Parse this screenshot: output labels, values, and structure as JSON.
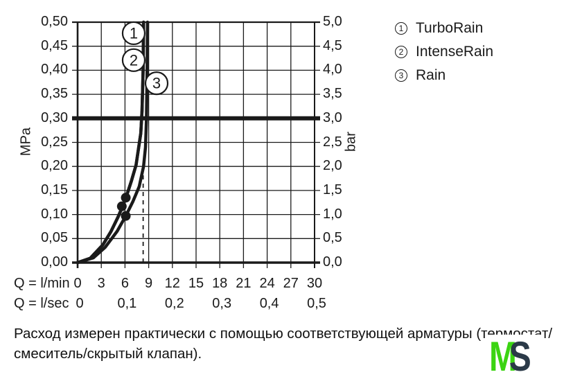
{
  "legend": {
    "items": [
      {
        "number": "1",
        "label": "TurboRain"
      },
      {
        "number": "2",
        "label": "IntenseRain"
      },
      {
        "number": "3",
        "label": "Rain"
      }
    ]
  },
  "footnote": {
    "line1": "Расход измерен практически с помощью соответствующей арматуры (термостат/",
    "line2": "смеситель/скрытый клапан)."
  },
  "logo": {
    "letter_m": "M",
    "letter_s": "S",
    "color_m": "#3bd412",
    "color_s": "#2b3a48"
  },
  "chart_data": {
    "type": "line",
    "title": "",
    "grid": true,
    "x_axis": {
      "caption_primary": "Q = l/min",
      "ticks_primary": [
        0,
        3,
        6,
        9,
        12,
        15,
        18,
        21,
        24,
        27,
        30
      ],
      "caption_secondary": "Q = l/sec",
      "ticks_secondary": [
        {
          "q": 0,
          "label": "0"
        },
        {
          "q": 6,
          "label": "0,1"
        },
        {
          "q": 12,
          "label": "0,2"
        },
        {
          "q": 18,
          "label": "0,3"
        },
        {
          "q": 24,
          "label": "0,4"
        },
        {
          "q": 30,
          "label": "0,5"
        }
      ],
      "range": [
        0,
        30
      ]
    },
    "y_axis_left": {
      "caption": "MPa",
      "ticks_top_to_bottom": [
        "0,50",
        "0,45",
        "0,40",
        "0,35",
        "0,30",
        "0,25",
        "0,20",
        "0,15",
        "0,10",
        "0,05",
        "0,00"
      ],
      "range": [
        0,
        0.5
      ]
    },
    "y_axis_right": {
      "caption": "bar",
      "ticks_top_to_bottom": [
        "5,0",
        "4,5",
        "4,0",
        "3,5",
        "3,0",
        "2,5",
        "2,0",
        "1,5",
        "1,0",
        "0,5",
        "0,0"
      ],
      "range": [
        0,
        5
      ]
    },
    "reference_line_mpa": 0.3,
    "dashed_line_lmin": 8.3,
    "series": [
      {
        "id": "1",
        "name": "TurboRain",
        "marker_q_p": [
          6.1,
          0.135
        ],
        "points_q_p": [
          [
            0,
            0
          ],
          [
            1.6,
            0.009
          ],
          [
            3.2,
            0.037
          ],
          [
            4.2,
            0.064
          ],
          [
            5.1,
            0.094
          ],
          [
            5.7,
            0.117
          ],
          [
            6.2,
            0.139
          ],
          [
            6.8,
            0.169
          ],
          [
            7.4,
            0.203
          ],
          [
            7.7,
            0.236
          ],
          [
            8.0,
            0.269
          ],
          [
            8.16,
            0.316
          ],
          [
            8.3,
            0.402
          ],
          [
            8.35,
            0.5
          ]
        ]
      },
      {
        "id": "2",
        "name": "IntenseRain",
        "marker_q_p": [
          5.6,
          0.117
        ],
        "points_q_p": [
          [
            0,
            0
          ],
          [
            1.6,
            0.009
          ],
          [
            3.2,
            0.037
          ],
          [
            4.2,
            0.064
          ],
          [
            5.1,
            0.094
          ],
          [
            5.7,
            0.117
          ],
          [
            6.2,
            0.139
          ],
          [
            6.8,
            0.169
          ],
          [
            7.4,
            0.203
          ],
          [
            7.7,
            0.236
          ],
          [
            8.0,
            0.269
          ],
          [
            8.16,
            0.316
          ],
          [
            8.3,
            0.402
          ],
          [
            8.35,
            0.5
          ]
        ]
      },
      {
        "id": "3",
        "name": "Rain",
        "marker_q_p": [
          6.1,
          0.097
        ],
        "points_q_p": [
          [
            0,
            0
          ],
          [
            2,
            0.01
          ],
          [
            3.5,
            0.032
          ],
          [
            5,
            0.065
          ],
          [
            6.1,
            0.097
          ],
          [
            7,
            0.127
          ],
          [
            7.8,
            0.158
          ],
          [
            8.35,
            0.2
          ],
          [
            8.6,
            0.24
          ],
          [
            8.72,
            0.3
          ],
          [
            8.8,
            0.4
          ],
          [
            8.85,
            0.5
          ]
        ]
      }
    ],
    "curve_labels": [
      {
        "text": "1",
        "q": 7.1,
        "p": 0.477
      },
      {
        "text": "2",
        "q": 7.1,
        "p": 0.421
      },
      {
        "text": "3",
        "q": 10.0,
        "p": 0.373
      }
    ]
  }
}
